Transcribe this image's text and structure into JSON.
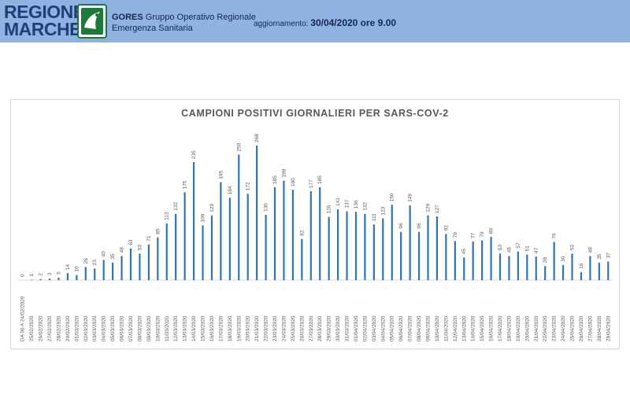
{
  "header": {
    "logo_line1": "REGIONE",
    "logo_line2": "MARCHE",
    "org_name": "GORES",
    "org_desc_line1": "Gruppo Operativo Regionale",
    "org_desc_line2": "Emergenza Sanitaria",
    "update_label": "aggiornamento:",
    "update_value": "30/04/2020 ore 9.00",
    "emblem_icon": "regione-marche-emblem-icon"
  },
  "colors": {
    "header_bg": "#8fb2e0",
    "bar": "#2e75b6",
    "logo_text": "#1f3f7a"
  },
  "chart_data": {
    "type": "bar",
    "title": "CAMPIONI POSITIVI GIORNALIERI PER SARS-COV-2",
    "xlabel": "",
    "ylabel": "",
    "ylim": [
      0,
      268
    ],
    "grid": false,
    "legend": "none",
    "categories": [
      "DA 06 A 24/02/2020",
      "25/02/2020",
      "26/02/2020",
      "27/02/2020",
      "28/02/2020",
      "29/02/2020",
      "01/03/2020",
      "02/03/2020",
      "03/03/2020",
      "04/03/2020",
      "05/03/2020",
      "06/03/2020",
      "07/03/2020",
      "08/03/2020",
      "09/03/2020",
      "10/03/2020",
      "11/03/2020",
      "12/03/2020",
      "13/03/2020",
      "14/03/2020",
      "15/03/2020",
      "16/03/2020",
      "17/03/2020",
      "18/03/2020",
      "19/03/2020",
      "20/03/2020",
      "21/03/2020",
      "22/03/2020",
      "23/03/2020",
      "24/03/2020",
      "25/03/2020",
      "26/03/2020",
      "27/03/2020",
      "28/03/2020",
      "29/03/2020",
      "30/03/2020",
      "31/03/2020",
      "01/04/2020",
      "02/04/2020",
      "03/04/2020",
      "04/04/2020",
      "05/04/2020",
      "06/04/2020",
      "07/04/2020",
      "08/04/2020",
      "09/04/2020",
      "10/04/2020",
      "11/04/2020",
      "12/04/2020",
      "13/04/2020",
      "14/04/2020",
      "15/04/2020",
      "16/04/2020",
      "17/04/2020",
      "18/04/2020",
      "19/04/2020",
      "20/04/2020",
      "21/04/2020",
      "22/04/2020",
      "23/04/2020",
      "24/04/2020",
      "25/04/2020",
      "26/04/2020",
      "27/04/2020",
      "28/04/2020",
      "29/04/2020"
    ],
    "values": [
      0,
      1,
      2,
      3,
      5,
      14,
      10,
      26,
      23,
      40,
      35,
      48,
      63,
      53,
      71,
      85,
      113,
      132,
      175,
      235,
      109,
      129,
      195,
      164,
      250,
      172,
      268,
      130,
      185,
      198,
      180,
      82,
      177,
      185,
      126,
      141,
      137,
      136,
      132,
      111,
      123,
      150,
      96,
      149,
      96,
      129,
      127,
      92,
      78,
      45,
      77,
      79,
      86,
      53,
      48,
      57,
      51,
      47,
      28,
      76,
      30,
      53,
      16,
      48,
      35,
      37
    ]
  }
}
